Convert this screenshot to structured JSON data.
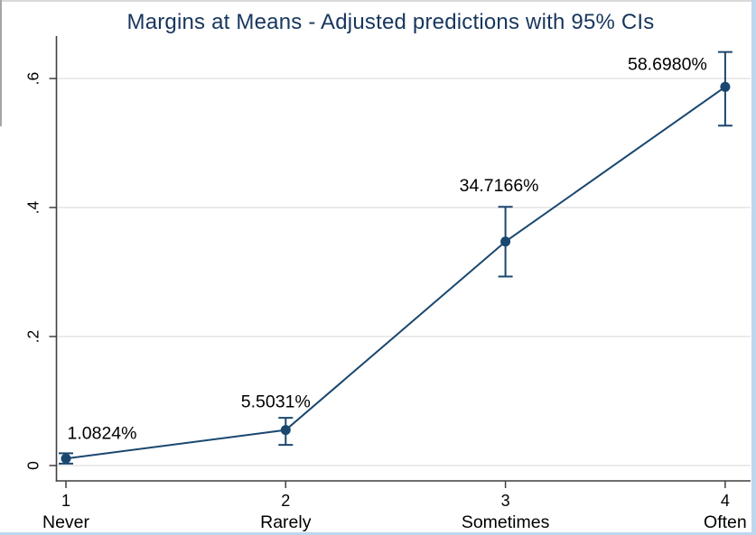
{
  "title": "Margins at Means - Adjusted predictions with 95% CIs",
  "chart_data": {
    "type": "line",
    "title": "Margins at Means - Adjusted predictions with 95% CIs",
    "x": [
      1,
      2,
      3,
      4
    ],
    "xtick_labels": [
      "1",
      "2",
      "3",
      "4"
    ],
    "categories": [
      "Never",
      "Rarely",
      "Sometimes",
      "Often"
    ],
    "series": [
      {
        "name": "Adjusted predictions with 95% CIs",
        "values": [
          0.010824,
          0.055031,
          0.347166,
          0.58698
        ],
        "ci_low": [
          0.003,
          0.032,
          0.293,
          0.527
        ],
        "ci_high": [
          0.019,
          0.074,
          0.401,
          0.641
        ]
      }
    ],
    "point_labels": [
      "1.0824%",
      "5.5031%",
      "34.7166%",
      "58.6980%"
    ],
    "xlabel": "",
    "ylabel": "",
    "ylim": [
      -0.025,
      0.66
    ],
    "yticks": [
      0,
      0.2,
      0.4,
      0.6
    ],
    "ytick_labels": [
      "0",
      ".2",
      ".4",
      ".6"
    ],
    "grid": true,
    "legend_position": "none",
    "colors": {
      "line": "#1a476f",
      "marker": "#1a476f",
      "title": "#17365d",
      "grid": "#e9e8e6",
      "axis": "#3f3f3f",
      "text": "#000000",
      "background": "#ffffff",
      "border_accent": "#bdd7ee",
      "edge_gray": "#a6a6a6",
      "edge_light": "#d9d9d9"
    }
  }
}
